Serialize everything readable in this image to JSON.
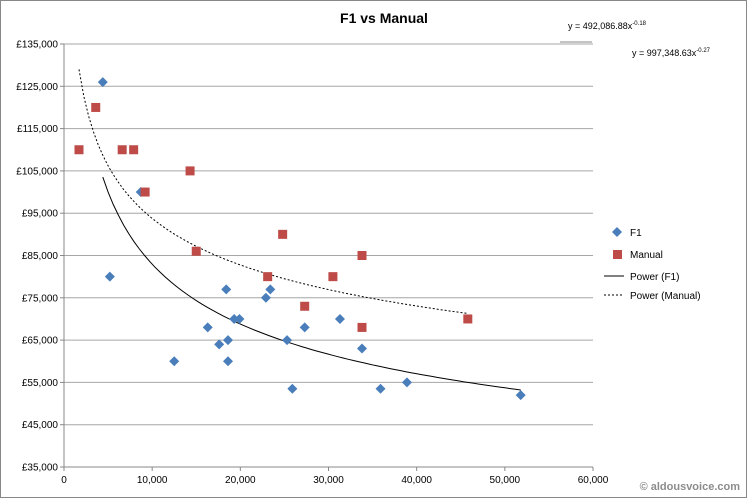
{
  "chart_data": {
    "type": "scatter",
    "title": "F1 vs Manual",
    "xlabel": "",
    "ylabel": "",
    "xlim": [
      0,
      60000
    ],
    "ylim": [
      35000,
      135000
    ],
    "x_ticks": [
      "0",
      "10,000",
      "20,000",
      "30,000",
      "40,000",
      "50,000",
      "60,000"
    ],
    "y_ticks": [
      "£35,000",
      "£45,000",
      "£55,000",
      "£65,000",
      "£75,000",
      "£85,000",
      "£95,000",
      "£105,000",
      "£115,000",
      "£125,000",
      "£135,000"
    ],
    "grid": "horizontal",
    "legend_position": "right",
    "series": [
      {
        "name": "F1",
        "marker": "diamond",
        "color": "#4a7ebb",
        "points": [
          [
            4400,
            126000
          ],
          [
            5200,
            80000
          ],
          [
            8700,
            100000
          ],
          [
            12500,
            60000
          ],
          [
            16300,
            68000
          ],
          [
            17600,
            64000
          ],
          [
            18400,
            77000
          ],
          [
            18600,
            65000
          ],
          [
            18600,
            60000
          ],
          [
            19300,
            70000
          ],
          [
            19900,
            70000
          ],
          [
            22900,
            75000
          ],
          [
            23400,
            77000
          ],
          [
            25300,
            65000
          ],
          [
            25900,
            53500
          ],
          [
            27300,
            68000
          ],
          [
            31300,
            70000
          ],
          [
            33800,
            63000
          ],
          [
            35900,
            53500
          ],
          [
            38900,
            55000
          ],
          [
            51800,
            52000
          ]
        ]
      },
      {
        "name": "Manual",
        "marker": "square",
        "color": "#be4b48",
        "points": [
          [
            1700,
            110000
          ],
          [
            3600,
            120000
          ],
          [
            6600,
            110000
          ],
          [
            7900,
            110000
          ],
          [
            9200,
            100000
          ],
          [
            14300,
            105000
          ],
          [
            15000,
            86000
          ],
          [
            23100,
            80000
          ],
          [
            24800,
            90000
          ],
          [
            27300,
            73000
          ],
          [
            30500,
            80000
          ],
          [
            33800,
            85000
          ],
          [
            33800,
            68000
          ],
          [
            45800,
            70000
          ]
        ]
      }
    ],
    "trendlines": [
      {
        "name": "Power (F1)",
        "style": "solid",
        "color": "#000000",
        "a": 997348.63,
        "b": -0.27,
        "x_range": [
          4400,
          51800
        ]
      },
      {
        "name": "Power (Manual)",
        "style": "dashed",
        "color": "#000000",
        "a": 492086.88,
        "b": -0.18,
        "x_range": [
          1700,
          45800
        ]
      }
    ],
    "equations": [
      "y = 492,086.88x",
      "-0.18",
      "y = 997,348.63x",
      "-0.27"
    ]
  },
  "watermark": "© aldousvoice.com"
}
